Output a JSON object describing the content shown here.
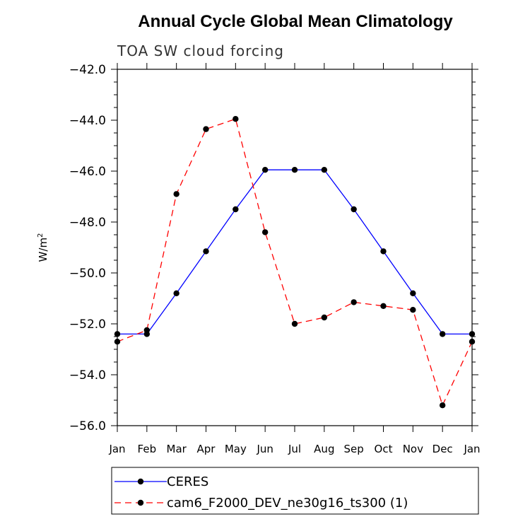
{
  "chart_data": {
    "type": "line",
    "title": "Annual Cycle Global Mean Climatology",
    "subtitle": "TOA SW cloud forcing",
    "ylabel": "W/m",
    "ylabel_superscript": "2",
    "categories": [
      "Jan",
      "Feb",
      "Mar",
      "Apr",
      "May",
      "Jun",
      "Jul",
      "Aug",
      "Sep",
      "Oct",
      "Nov",
      "Dec",
      "Jan"
    ],
    "ylim": [
      -56.0,
      -42.0
    ],
    "yticks": [
      -42.0,
      -44.0,
      -46.0,
      -48.0,
      -50.0,
      -52.0,
      -54.0,
      -56.0
    ],
    "ytick_labels": [
      "−42.0",
      "−44.0",
      "−46.0",
      "−48.0",
      "−50.0",
      "−52.0",
      "−54.0",
      "−56.0"
    ],
    "grid": false,
    "legend_position": "bottom",
    "series": [
      {
        "name": "CERES",
        "color": "#0000ff",
        "style": "solid",
        "marker": "circle",
        "values": [
          -52.4,
          -52.4,
          -50.8,
          -49.15,
          -47.5,
          -45.95,
          -45.95,
          -45.95,
          -47.5,
          -49.15,
          -50.8,
          -52.4,
          -52.4
        ]
      },
      {
        "name": "cam6_F2000_DEV_ne30g16_ts300 (1)",
        "color": "#ff0000",
        "style": "dashed",
        "marker": "circle",
        "values": [
          -52.7,
          -52.25,
          -46.9,
          -44.35,
          -43.95,
          -48.4,
          -52.0,
          -51.75,
          -51.15,
          -51.3,
          -51.45,
          -55.2,
          -52.7
        ]
      }
    ]
  }
}
